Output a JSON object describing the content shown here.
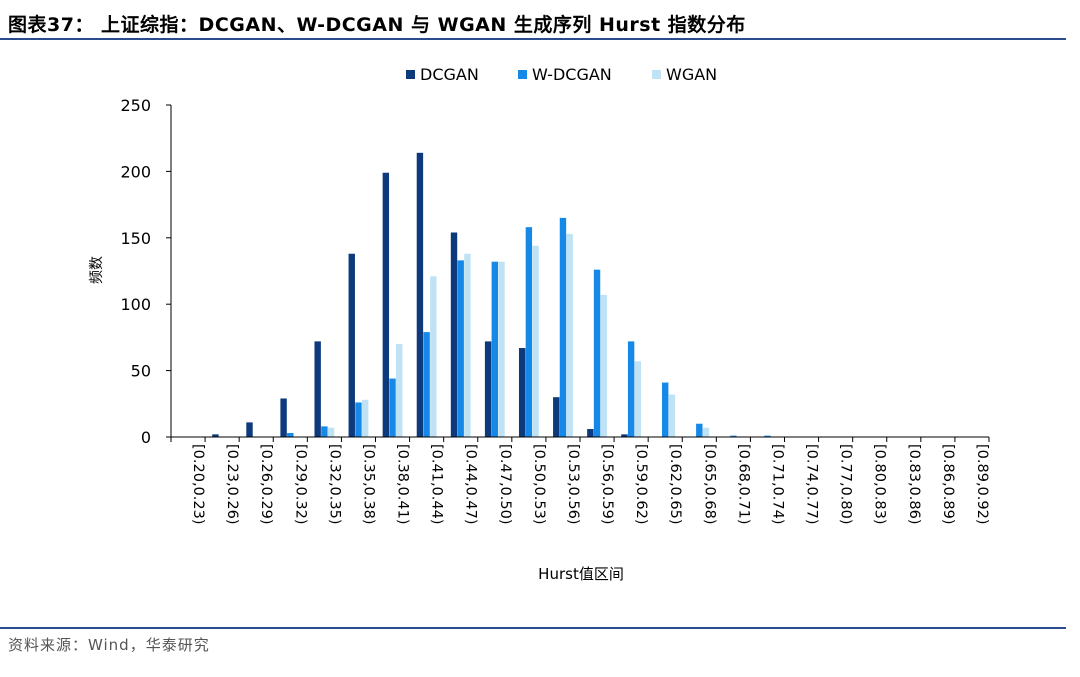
{
  "figure": {
    "title": "图表37：  上证综指：DCGAN、W-DCGAN 与 WGAN 生成序列 Hurst 指数分布",
    "source": "资料来源：Wind，华泰研究"
  },
  "colors": {
    "DCGAN": "#0d3a7c",
    "W-DCGAN": "#1689e8",
    "WGAN": "#bfe2f5",
    "rule": "#2b4c8c"
  },
  "chart_data": {
    "type": "bar",
    "title": "",
    "xlabel": "Hurst值区间",
    "ylabel": "频数",
    "ylim": [
      0,
      250
    ],
    "yticks": [
      0,
      50,
      100,
      150,
      200,
      250
    ],
    "legend_position": "top-center",
    "grid": false,
    "categories": [
      "[0.20,0.23)",
      "[0.23,0.26)",
      "[0.26,0.29)",
      "[0.29,0.32)",
      "[0.32,0.35)",
      "[0.35,0.38)",
      "[0.38,0.41)",
      "[0.41,0.44)",
      "[0.44,0.47)",
      "[0.47,0.50)",
      "[0.50,0.53)",
      "[0.53,0.56)",
      "[0.56,0.59)",
      "[0.59,0.62)",
      "[0.62,0.65)",
      "[0.65,0.68)",
      "[0.68,0.71)",
      "[0.71,0.74)",
      "[0.74,0.77)",
      "[0.77,0.80)",
      "[0.80,0.83)",
      "[0.83,0.86)",
      "[0.86,0.89)",
      "[0.89,0.92)"
    ],
    "series": [
      {
        "name": "DCGAN",
        "values": [
          0,
          2,
          11,
          29,
          72,
          138,
          199,
          214,
          154,
          72,
          67,
          30,
          6,
          2,
          0,
          0,
          0,
          0,
          0,
          0,
          0,
          0,
          0,
          0
        ]
      },
      {
        "name": "W-DCGAN",
        "values": [
          0,
          0,
          0,
          3,
          8,
          26,
          44,
          79,
          133,
          132,
          158,
          165,
          126,
          72,
          41,
          10,
          1,
          1,
          0,
          0,
          0,
          0,
          0,
          0
        ]
      },
      {
        "name": "WGAN",
        "values": [
          0,
          0,
          0,
          0,
          7,
          28,
          70,
          121,
          138,
          132,
          144,
          153,
          107,
          57,
          32,
          7,
          0,
          0,
          0,
          0,
          0,
          0,
          0,
          0
        ]
      }
    ]
  }
}
